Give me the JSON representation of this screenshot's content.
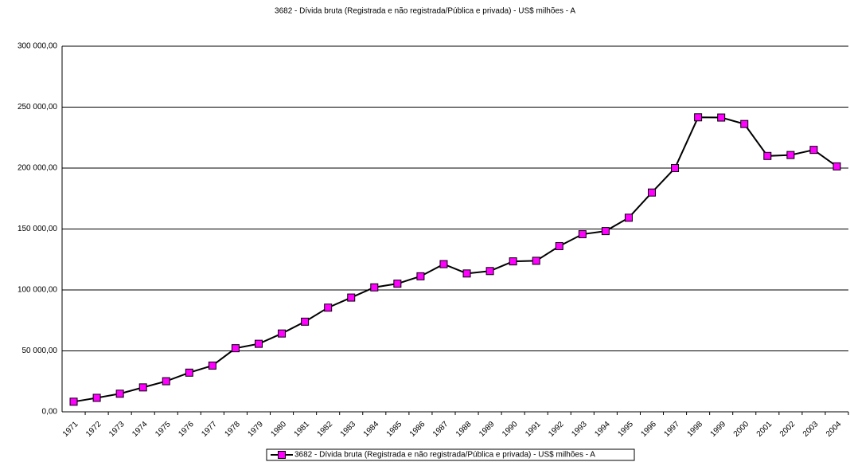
{
  "chart_data": {
    "type": "line",
    "title": "3682 - Dívida bruta (Registrada e não registrada/Pública e privada) - US$ milhões - A",
    "categories": [
      "1971",
      "1972",
      "1973",
      "1974",
      "1975",
      "1976",
      "1977",
      "1978",
      "1979",
      "1980",
      "1981",
      "1982",
      "1983",
      "1984",
      "1985",
      "1986",
      "1987",
      "1988",
      "1989",
      "1990",
      "1991",
      "1992",
      "1993",
      "1994",
      "1995",
      "1996",
      "1997",
      "1998",
      "1999",
      "2000",
      "2001",
      "2002",
      "2003",
      "2004"
    ],
    "series": [
      {
        "name": "3682 - Dívida bruta (Registrada e não registrada/Pública e privada) - US$ milhões - A",
        "color": "#ff00ff",
        "values": [
          8284,
          11464,
          14857,
          20032,
          25115,
          32145,
          37951,
          52187,
          55803,
          64259,
          73963,
          85487,
          93745,
          102127,
          105171,
          111203,
          121188,
          113511,
          115506,
          123439,
          123910,
          135949,
          145726,
          148295,
          159256,
          179935,
          199998,
          241644,
          241468,
          236156,
          209934,
          210711,
          214930,
          201373
        ]
      }
    ],
    "ylim": [
      0,
      300000
    ],
    "yticks": [
      {
        "value": 0,
        "label": "0,00"
      },
      {
        "value": 50000,
        "label": "50 000,00"
      },
      {
        "value": 100000,
        "label": "100 000,00"
      },
      {
        "value": 150000,
        "label": "150 000,00"
      },
      {
        "value": 200000,
        "label": "200 000,00"
      },
      {
        "value": 250000,
        "label": "250 000,00"
      },
      {
        "value": 300000,
        "label": "300 000,00"
      }
    ],
    "grid": true,
    "legend": "bottom"
  }
}
